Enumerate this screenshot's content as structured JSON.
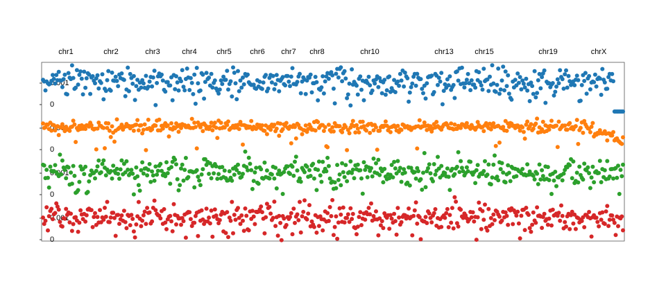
{
  "chart_data": {
    "type": "scatter",
    "title": "",
    "xlabel": "",
    "ylabel": "",
    "chromosome_labels": [
      "chr1",
      "chr2",
      "chr3",
      "chr4",
      "chr5",
      "chr6",
      "chr7",
      "chr8",
      "chr10",
      "chr13",
      "chr15",
      "chr19",
      "chrX"
    ],
    "chromosome_label_positions": [
      95,
      160,
      220,
      273,
      323,
      371,
      416,
      457,
      533,
      640,
      698,
      790,
      863
    ],
    "x_range": [
      60,
      900
    ],
    "track_tick_labels": [
      "0.001",
      "0"
    ],
    "series": [
      {
        "color": "#1f77b4",
        "top_value": "0.001",
        "bottom_value": "0"
      },
      {
        "color": "#ff7f0e",
        "top_value": "0.001",
        "bottom_value": "0"
      },
      {
        "color": "#2ca02c",
        "top_value": "0.001",
        "bottom_value": "0"
      },
      {
        "color": "#d62728",
        "top_value": "0.001",
        "bottom_value": "0"
      }
    ],
    "points_per_series": 480,
    "grid": false,
    "legend": "none"
  }
}
